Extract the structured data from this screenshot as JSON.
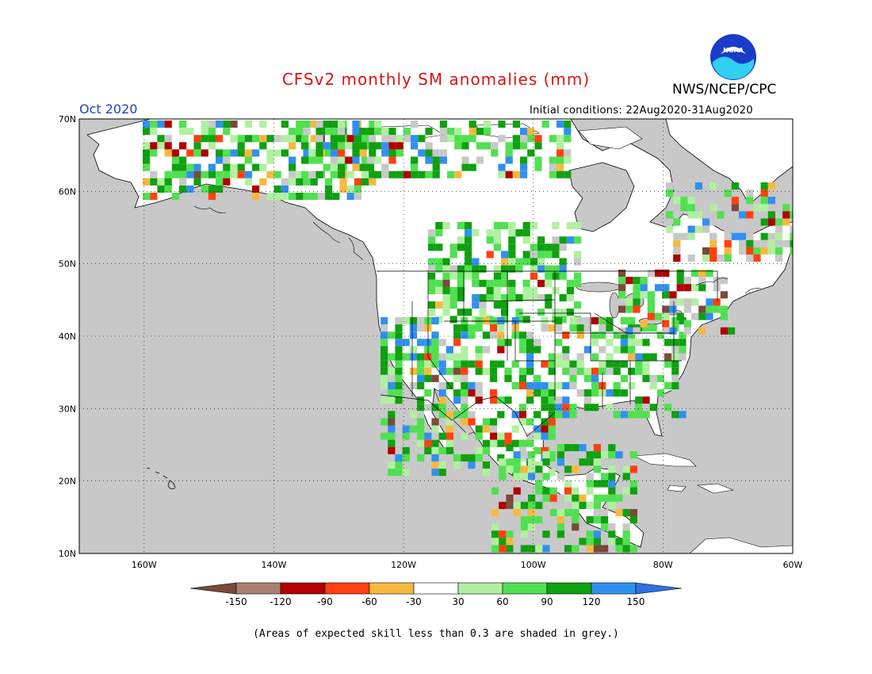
{
  "title": "CFSv2 monthly SM anomalies (mm)",
  "organization": "NWS/NCEP/CPC",
  "logo_text": "NOAA",
  "valid_month": "Oct 2020",
  "initial_conditions": "Initial conditions: 22Aug2020-31Aug2020",
  "footnote": "(Areas of expected skill less than 0.3 are shaded in grey.)",
  "map": {
    "region": "North America",
    "lon_range": [
      -170,
      -60
    ],
    "lat_range": [
      10,
      70
    ],
    "grid": true,
    "lat_labels": [
      "70N",
      "60N",
      "50N",
      "40N",
      "30N",
      "20N",
      "10N"
    ],
    "lon_labels": [
      "160W",
      "140W",
      "120W",
      "100W",
      "80W",
      "60W"
    ],
    "ocean_color": "#c8c8c8",
    "land_color": "#ffffff"
  },
  "colorbar": {
    "labels": [
      "-150",
      "-120",
      "-90",
      "-60",
      "-30",
      "30",
      "60",
      "90",
      "120",
      "150"
    ],
    "colors": [
      "#7a4a3a",
      "#a88070",
      "#b00000",
      "#ff4010",
      "#f8b840",
      "#ffffff",
      "#b0f0a0",
      "#50e050",
      "#10a010",
      "#3090f0",
      "#3070e0"
    ]
  }
}
